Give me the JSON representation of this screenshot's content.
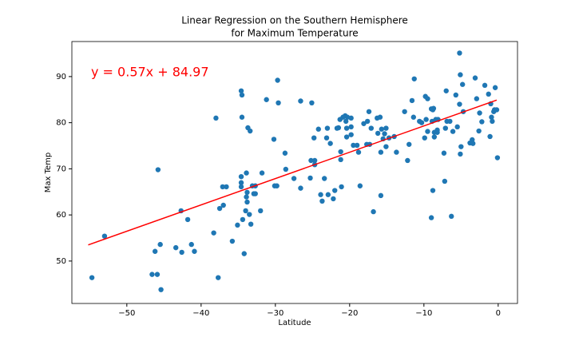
{
  "chart_data": {
    "type": "scatter",
    "title": [
      "Linear Regression on the Southern Hemisphere",
      "for Maximum Temperature"
    ],
    "x_label": "Latitude",
    "y_label": "Max Temp",
    "annotation": "y = 0.57x + 84.97",
    "xlim": [
      -57.4,
      2.6
    ],
    "ylim": [
      40.8,
      97.6
    ],
    "xticks": [
      {
        "value": -50,
        "label": "−50"
      },
      {
        "value": -40,
        "label": "−40"
      },
      {
        "value": -30,
        "label": "−30"
      },
      {
        "value": -20,
        "label": "−20"
      },
      {
        "value": -10,
        "label": "−10"
      },
      0
    ],
    "yticks": [
      50,
      60,
      70,
      80,
      90
    ],
    "series": [
      {
        "color": "#1f77b4",
        "x": [
          -54.7,
          -53.0,
          -46.2,
          -45.8,
          -45.5,
          -45.4,
          -46.6,
          -45.9,
          -43.4,
          -42.7,
          -42.6,
          -41.8,
          -41.3,
          -40.9,
          -38.3,
          -38.0,
          -37.7,
          -37.5,
          -37.1,
          -37.0,
          -36.6,
          -35.8,
          -35.1,
          -34.6,
          -34.5,
          -34.5,
          -34.6,
          -34.6,
          -34.6,
          -34.4,
          -34.2,
          -34.0,
          -33.8,
          -33.9,
          -33.9,
          -33.8,
          -33.7,
          -33.4,
          -33.5,
          -33.3,
          -33.1,
          -32.9,
          -32.7,
          -32.7,
          -32.0,
          -31.8,
          -31.2,
          -30.2,
          -30.1,
          -29.8,
          -29.7,
          -29.6,
          -28.7,
          -28.6,
          -27.5,
          -26.6,
          -26.6,
          -25.3,
          -25.1,
          -25.2,
          -24.7,
          -24.8,
          -24.7,
          -24.2,
          -23.9,
          -23.7,
          -23.4,
          -23.1,
          -23.0,
          -22.9,
          -22.6,
          -22.2,
          -22.0,
          -21.7,
          -21.5,
          -21.3,
          -21.2,
          -21.2,
          -21.1,
          -20.9,
          -20.6,
          -20.5,
          -20.3,
          -19.8,
          -20.4,
          -20.4,
          -19.8,
          -19.8,
          -19.5,
          -19.0,
          -18.6,
          -18.8,
          -18.1,
          -17.6,
          -17.7,
          -17.3,
          -17.4,
          -17.1,
          -16.8,
          -16.3,
          -16.2,
          -15.9,
          -15.8,
          -15.8,
          -15.7,
          -15.5,
          -15.3,
          -15.1,
          -15.1,
          -14.7,
          -14.0,
          -13.7,
          -12.6,
          -12.2,
          -12.0,
          -11.6,
          -11.4,
          -11.3,
          -10.6,
          -10.3,
          -9.9,
          -9.8,
          -9.7,
          -9.5,
          -9.5,
          -9.0,
          -9.0,
          -8.8,
          -8.7,
          -8.9,
          -8.8,
          -8.6,
          -8.6,
          -8.2,
          -8.2,
          -8.4,
          -8.1,
          -7.3,
          -7.2,
          -7.1,
          -7.0,
          -6.9,
          -6.5,
          -6.3,
          -6.1,
          -5.7,
          -5.5,
          -5.2,
          -5.2,
          -5.1,
          -5.0,
          -5.1,
          -4.8,
          -4.7,
          -3.8,
          -3.5,
          -3.4,
          -3.1,
          -2.9,
          -2.6,
          -2.5,
          -2.2,
          -1.8,
          -1.3,
          -1.1,
          -1.0,
          -0.9,
          -0.6,
          -0.8,
          -0.5,
          -0.2,
          -0.4,
          -0.1
        ],
        "y": [
          46.4,
          55.4,
          52.1,
          69.8,
          53.6,
          43.8,
          47.1,
          47.1,
          52.9,
          60.9,
          51.9,
          59.0,
          53.6,
          52.1,
          56.1,
          81.0,
          46.4,
          61.4,
          66.1,
          62.1,
          66.1,
          54.3,
          57.8,
          86.9,
          86.0,
          81.2,
          68.3,
          67.0,
          66.1,
          59.0,
          51.6,
          60.9,
          62.8,
          69.1,
          63.9,
          64.9,
          78.9,
          78.2,
          60.1,
          58.0,
          66.3,
          64.6,
          64.6,
          66.3,
          60.9,
          69.1,
          85.0,
          76.4,
          66.3,
          66.3,
          89.2,
          84.3,
          73.4,
          69.9,
          67.9,
          84.7,
          65.8,
          68.0,
          84.3,
          71.8,
          71.8,
          76.7,
          70.9,
          78.6,
          64.4,
          63.0,
          67.9,
          76.7,
          78.8,
          64.4,
          75.5,
          63.5,
          65.3,
          78.8,
          78.9,
          80.7,
          73.7,
          72.0,
          66.1,
          81.2,
          81.5,
          80.3,
          81.2,
          81.0,
          76.9,
          78.8,
          79.1,
          77.4,
          75.1,
          75.1,
          66.3,
          73.6,
          79.8,
          80.3,
          75.3,
          75.3,
          82.4,
          78.8,
          60.7,
          81.0,
          77.7,
          81.2,
          73.6,
          64.2,
          78.6,
          76.5,
          77.6,
          78.8,
          74.8,
          76.7,
          77.0,
          73.6,
          82.4,
          71.8,
          75.3,
          84.8,
          81.2,
          89.5,
          80.3,
          80.0,
          76.7,
          85.7,
          80.7,
          78.1,
          85.2,
          59.4,
          83.0,
          82.8,
          83.1,
          80.3,
          65.3,
          76.9,
          77.9,
          77.9,
          78.4,
          80.7,
          80.7,
          73.4,
          67.3,
          78.8,
          86.9,
          80.3,
          80.3,
          59.7,
          78.1,
          86.0,
          79.1,
          84.0,
          95.1,
          73.2,
          74.8,
          90.4,
          88.3,
          82.4,
          75.6,
          76.3,
          75.5,
          89.7,
          85.2,
          78.2,
          82.1,
          80.2,
          88.1,
          86.2,
          77.0,
          84.1,
          81.2,
          82.4,
          80.3,
          82.8,
          82.8,
          87.6,
          72.4
        ]
      },
      {
        "type": "line",
        "color": "#ff0000",
        "x": [
          -55.2,
          -0.2
        ],
        "y": [
          53.5,
          84.9
        ]
      }
    ]
  }
}
